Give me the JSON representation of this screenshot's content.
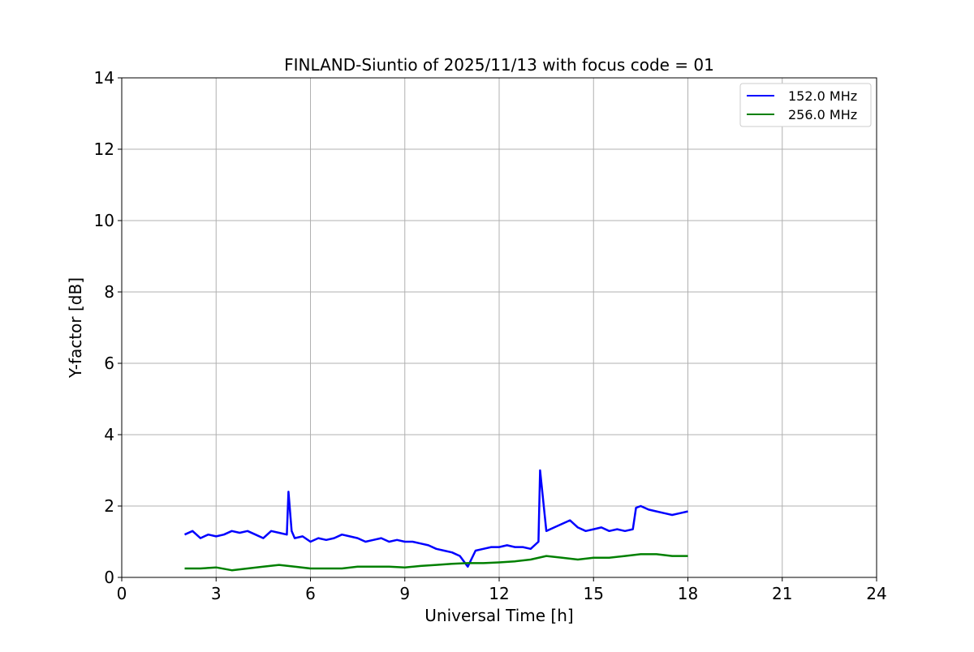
{
  "chart_data": {
    "type": "line",
    "title": "FINLAND-Siuntio of 2025/11/13 with focus code = 01",
    "xlabel": "Universal Time [h]",
    "ylabel": "Y-factor [dB]",
    "xlim": [
      0,
      24
    ],
    "ylim": [
      0,
      14
    ],
    "xticks": [
      0,
      3,
      6,
      9,
      12,
      15,
      18,
      21,
      24
    ],
    "yticks": [
      0,
      2,
      4,
      6,
      8,
      10,
      12,
      14
    ],
    "xtick_labels": [
      "0",
      "3",
      "6",
      "9",
      "12",
      "15",
      "18",
      "21",
      "24"
    ],
    "ytick_labels": [
      "0",
      "2",
      "4",
      "6",
      "8",
      "10",
      "12",
      "14"
    ],
    "grid": true,
    "legend_position": "top-right",
    "series": [
      {
        "name": "152.0 MHz",
        "color": "#0000ff",
        "x": [
          2.0,
          2.25,
          2.5,
          2.75,
          3.0,
          3.25,
          3.5,
          3.75,
          4.0,
          4.25,
          4.5,
          4.75,
          5.0,
          5.25,
          5.3,
          5.4,
          5.5,
          5.75,
          6.0,
          6.25,
          6.5,
          6.75,
          7.0,
          7.25,
          7.5,
          7.75,
          8.0,
          8.25,
          8.5,
          8.75,
          9.0,
          9.25,
          9.5,
          9.75,
          10.0,
          10.25,
          10.5,
          10.75,
          11.0,
          11.25,
          11.5,
          11.75,
          12.0,
          12.25,
          12.5,
          12.75,
          13.0,
          13.25,
          13.3,
          13.5,
          13.75,
          14.0,
          14.25,
          14.5,
          14.75,
          15.0,
          15.25,
          15.5,
          15.75,
          16.0,
          16.25,
          16.35,
          16.5,
          16.75,
          17.0,
          17.25,
          17.5,
          17.75,
          18.0
        ],
        "y": [
          1.2,
          1.3,
          1.1,
          1.2,
          1.15,
          1.2,
          1.3,
          1.25,
          1.3,
          1.2,
          1.1,
          1.3,
          1.25,
          1.2,
          2.4,
          1.3,
          1.1,
          1.15,
          1.0,
          1.1,
          1.05,
          1.1,
          1.2,
          1.15,
          1.1,
          1.0,
          1.05,
          1.1,
          1.0,
          1.05,
          1.0,
          1.0,
          0.95,
          0.9,
          0.8,
          0.75,
          0.7,
          0.6,
          0.3,
          0.75,
          0.8,
          0.85,
          0.85,
          0.9,
          0.85,
          0.85,
          0.8,
          1.0,
          3.0,
          1.3,
          1.4,
          1.5,
          1.6,
          1.4,
          1.3,
          1.35,
          1.4,
          1.3,
          1.35,
          1.3,
          1.35,
          1.95,
          2.0,
          1.9,
          1.85,
          1.8,
          1.75,
          1.8,
          1.85
        ]
      },
      {
        "name": "256.0 MHz",
        "color": "#008000",
        "x": [
          2.0,
          2.5,
          3.0,
          3.5,
          4.0,
          4.5,
          5.0,
          5.5,
          6.0,
          6.5,
          7.0,
          7.5,
          8.0,
          8.5,
          9.0,
          9.5,
          10.0,
          10.5,
          11.0,
          11.5,
          12.0,
          12.5,
          13.0,
          13.5,
          14.0,
          14.5,
          15.0,
          15.5,
          16.0,
          16.5,
          17.0,
          17.5,
          18.0
        ],
        "y": [
          0.25,
          0.25,
          0.28,
          0.2,
          0.25,
          0.3,
          0.35,
          0.3,
          0.25,
          0.25,
          0.25,
          0.3,
          0.3,
          0.3,
          0.28,
          0.32,
          0.35,
          0.38,
          0.4,
          0.4,
          0.42,
          0.45,
          0.5,
          0.6,
          0.55,
          0.5,
          0.55,
          0.55,
          0.6,
          0.65,
          0.65,
          0.6,
          0.6
        ]
      }
    ]
  }
}
